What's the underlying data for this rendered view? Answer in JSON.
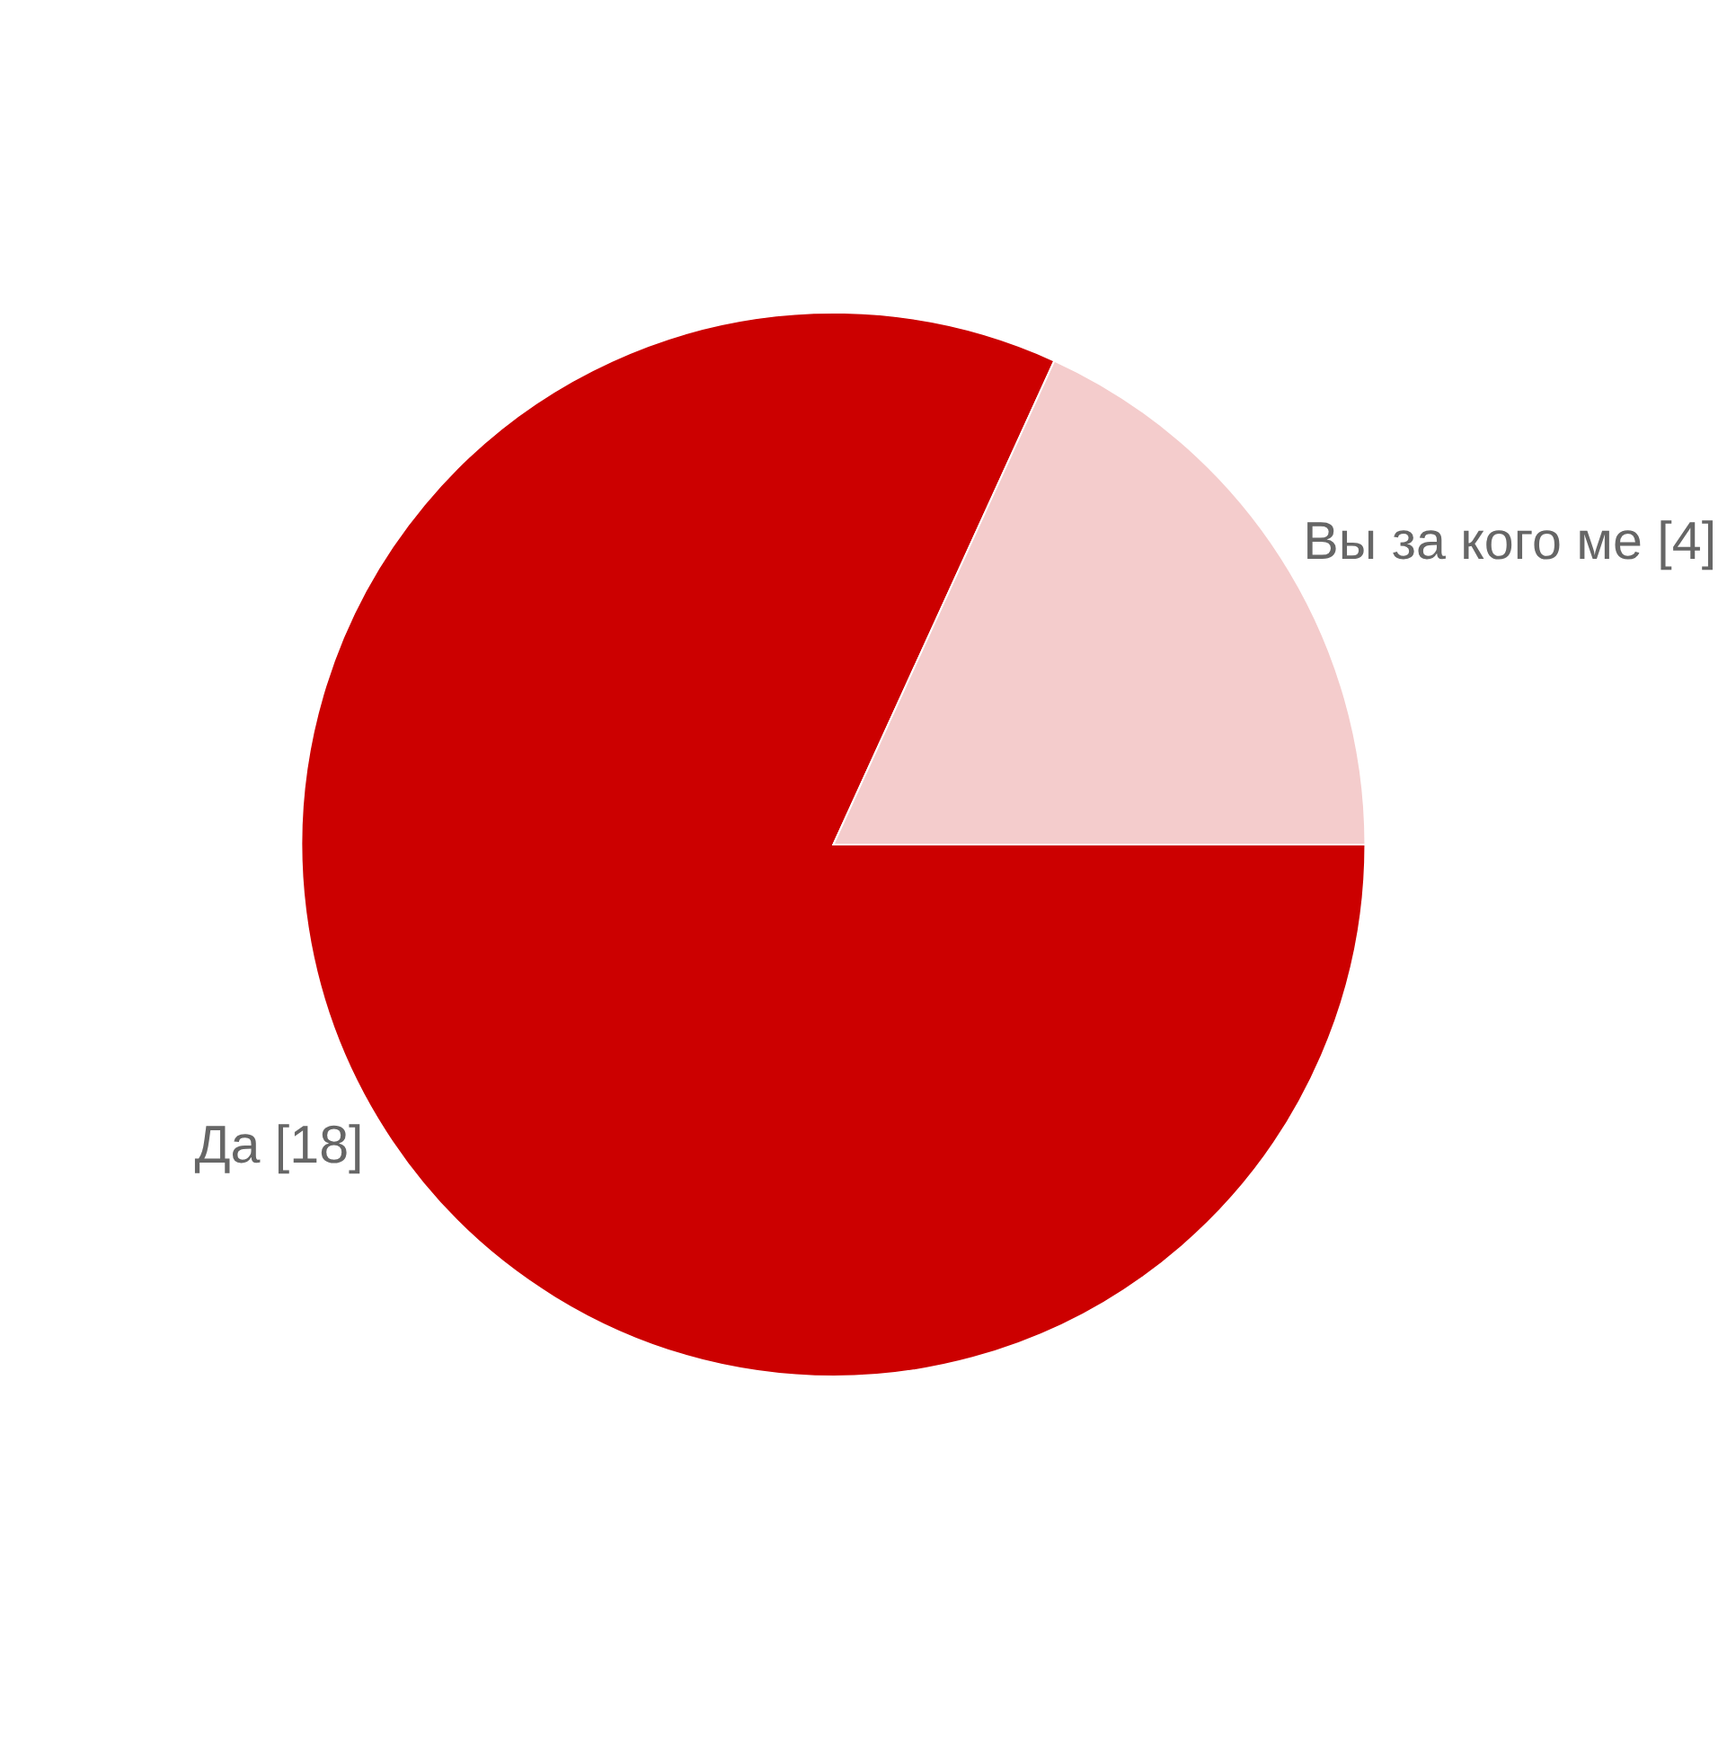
{
  "chart_data": {
    "type": "pie",
    "categories": [
      "Да [18]",
      "Вы за кого ме [4]"
    ],
    "values": [
      18,
      4
    ],
    "colors": [
      "#cc0000",
      "#f4cccc"
    ],
    "legend": false
  }
}
